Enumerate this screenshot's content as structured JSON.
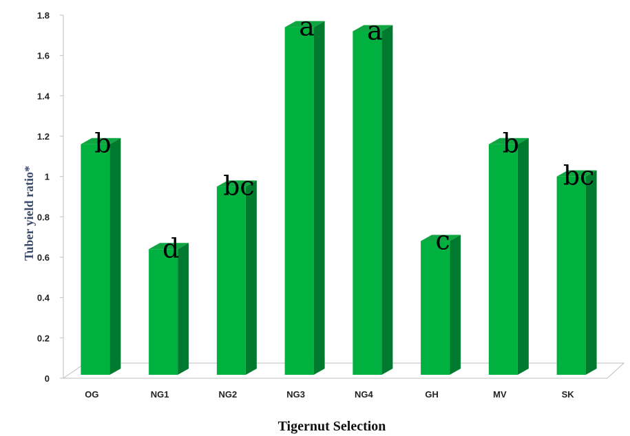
{
  "chart_data": {
    "type": "bar",
    "categories": [
      "OG",
      "NG1",
      "NG2",
      "NG3",
      "NG4",
      "GH",
      "MV",
      "SK"
    ],
    "values": [
      1.16,
      0.64,
      0.95,
      1.74,
      1.72,
      0.68,
      1.16,
      1.0
    ],
    "letters": [
      "b",
      "d",
      "bc",
      "a",
      "a",
      "c",
      "b",
      "bc"
    ],
    "xlabel": "Tigernut Selection",
    "ylabel": "Tuber yield ratio*",
    "ylim": [
      0,
      1.8
    ],
    "yticks": [
      "0",
      "0.2",
      "0.4",
      "0.6",
      "0.8",
      "1",
      "1.2",
      "1.4",
      "1.6",
      "1.8"
    ],
    "grid": false,
    "legend": "none",
    "colors": {
      "front": "#00b140",
      "side": "#007a2e",
      "top": "#0fa642"
    }
  }
}
